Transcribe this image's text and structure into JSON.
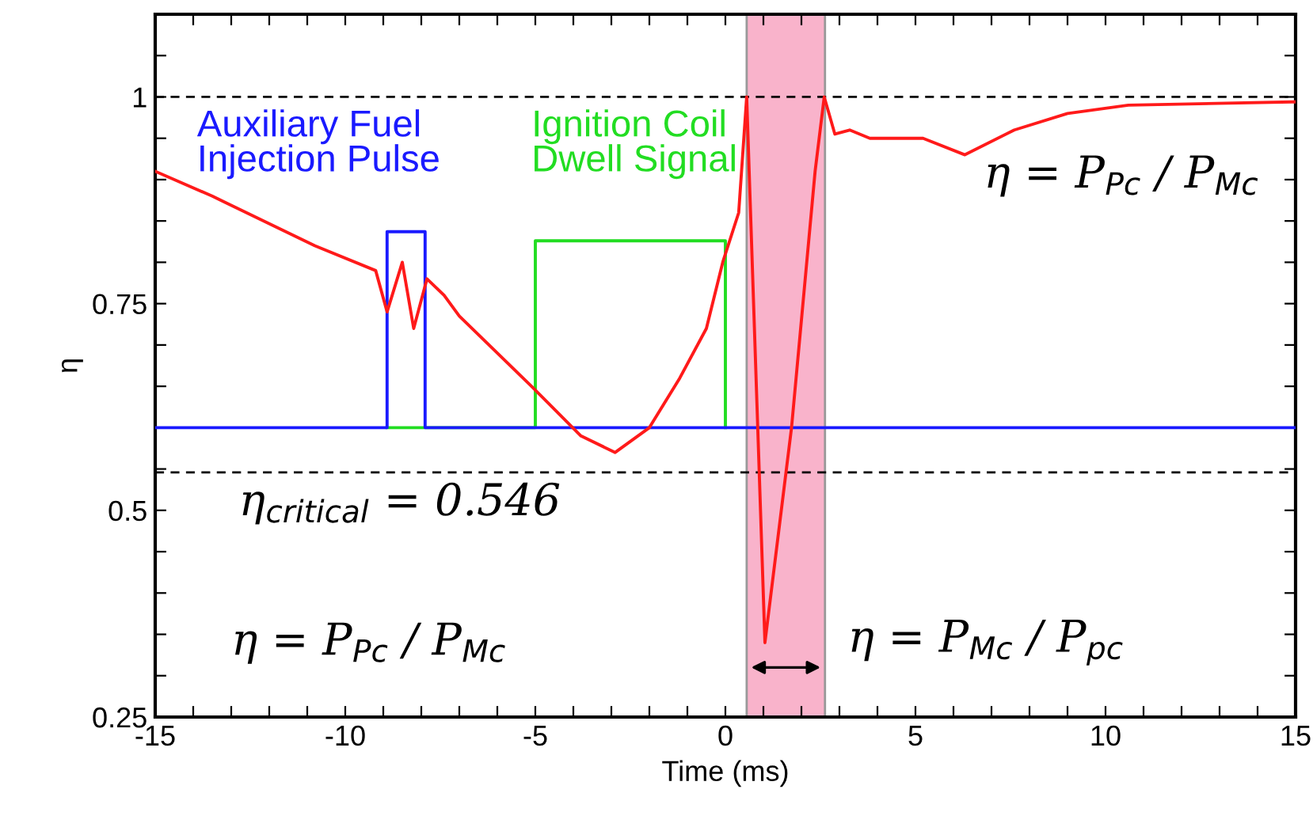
{
  "chart_data": {
    "type": "line",
    "xlabel": "Time (ms)",
    "ylabel": "η",
    "xlim": [
      -15,
      15
    ],
    "ylim": [
      0.25,
      1.1
    ],
    "xticks": [
      -15,
      {
        "value": -14,
        "label": null
      },
      {
        "value": -13,
        "label": null
      },
      {
        "value": -12,
        "label": null
      },
      {
        "value": -11,
        "label": null
      },
      -10,
      {
        "value": -9,
        "label": null
      },
      {
        "value": -8,
        "label": null
      },
      {
        "value": -7,
        "label": null
      },
      {
        "value": -6,
        "label": null
      },
      -5,
      {
        "value": -4,
        "label": null
      },
      {
        "value": -3,
        "label": null
      },
      {
        "value": -2,
        "label": null
      },
      {
        "value": -1,
        "label": null
      },
      0,
      {
        "value": 1,
        "label": null
      },
      {
        "value": 2,
        "label": null
      },
      {
        "value": 3,
        "label": null
      },
      {
        "value": 4,
        "label": null
      },
      5,
      {
        "value": 6,
        "label": null
      },
      {
        "value": 7,
        "label": null
      },
      {
        "value": 8,
        "label": null
      },
      {
        "value": 9,
        "label": null
      },
      10,
      {
        "value": 11,
        "label": null
      },
      {
        "value": 12,
        "label": null
      },
      {
        "value": 13,
        "label": null
      },
      {
        "value": 14,
        "label": null
      },
      15
    ],
    "yticks": [
      0.25,
      {
        "value": 0.3,
        "label": null
      },
      {
        "value": 0.35,
        "label": null
      },
      {
        "value": 0.4,
        "label": null
      },
      {
        "value": 0.45,
        "label": null
      },
      0.5,
      {
        "value": 0.55,
        "label": null
      },
      {
        "value": 0.6,
        "label": null
      },
      {
        "value": 0.65,
        "label": null
      },
      {
        "value": 0.7,
        "label": null
      },
      0.75,
      {
        "value": 0.8,
        "label": null
      },
      {
        "value": 0.85,
        "label": null
      },
      {
        "value": 0.9,
        "label": null
      },
      {
        "value": 0.95,
        "label": null
      },
      1,
      {
        "value": 1.05,
        "label": null
      }
    ],
    "grid": false,
    "legend": false,
    "line_style": "solid",
    "series": [
      {
        "name": "Ignition Coil\nDwell Signal",
        "color": "#22dd22",
        "x": [
          -8.9,
          -5,
          -5,
          0,
          0
        ],
        "values": [
          0.6,
          0.6,
          0.826,
          0.826,
          0.6
        ]
      },
      {
        "name": "Auxiliary Fuel\nInjection Pulse",
        "color": "#1a1aff",
        "x": [
          -15,
          -8.9,
          -8.9,
          -7.9,
          -7.9,
          15
        ],
        "values": [
          0.6,
          0.6,
          0.837,
          0.837,
          0.6,
          0.6
        ]
      },
      {
        "color": "#ff1a1a",
        "x": [
          -15,
          -13.5,
          -10.8,
          -9.2,
          -8.9,
          -8.5,
          -8.2,
          -7.85,
          -7.4,
          -7,
          -5.1,
          -3.8,
          -2.9,
          -2,
          -1.2,
          -0.5,
          -0.07,
          0.35,
          0.56,
          1.04,
          1.74,
          2.36,
          2.6,
          2.88,
          3.27,
          3.8,
          5.2,
          6.3,
          7.6,
          9,
          10.6,
          14.9,
          15
        ],
        "values": [
          0.91,
          0.88,
          0.82,
          0.79,
          0.74,
          0.8,
          0.72,
          0.78,
          0.76,
          0.735,
          0.65,
          0.59,
          0.57,
          0.6,
          0.66,
          0.72,
          0.8,
          0.86,
          1.0,
          0.34,
          0.6,
          0.91,
          1.0,
          0.955,
          0.96,
          0.95,
          0.95,
          0.93,
          0.96,
          0.98,
          0.99,
          0.994,
          0.994
        ]
      }
    ],
    "ref_lines": [
      {
        "axis": "y",
        "value": 1,
        "label": null,
        "line_style": "dashed",
        "color": "#000000"
      },
      {
        "axis": "y",
        "value": 0.546,
        "label": "η$_{critical}$ = 0.546",
        "line_style": "dashed",
        "color": "#000000"
      }
    ],
    "bands": [
      {
        "axis": "x",
        "from": 0.56,
        "to": 2.62,
        "label": "η = P$_{Mc}$ / P$_{pc}$",
        "color": "#f9b3cb"
      }
    ],
    "annotations": [
      "η = P$_{Pc}$ / P$_{Mc}$",
      "η = P$_{Pc}$ / P$_{Mc}$"
    ]
  }
}
